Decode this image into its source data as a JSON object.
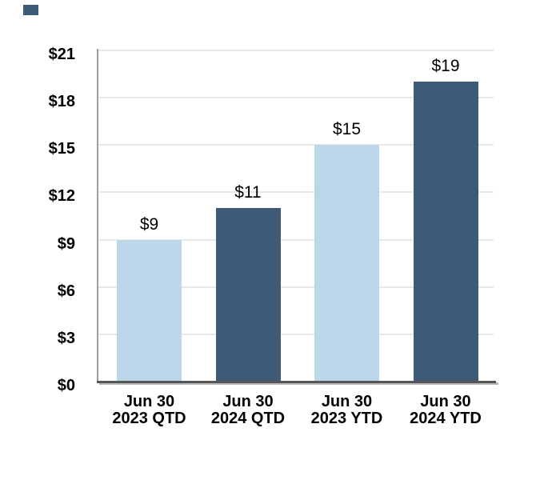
{
  "chart_data": {
    "type": "bar",
    "title": "",
    "categories": [
      "Jun 30 2023 QTD",
      "Jun 30 2024 QTD",
      "Jun 30 2023 YTD",
      "Jun 30 2024 YTD"
    ],
    "values": [
      9,
      11,
      15,
      19
    ],
    "bars": [
      {
        "category_line1": "Jun 30",
        "category_line2": "2023 QTD",
        "value": 9,
        "label": "$9",
        "color": "#bdd7ea"
      },
      {
        "category_line1": "Jun 30",
        "category_line2": "2024 QTD",
        "value": 11,
        "label": "$11",
        "color": "#3d5a76"
      },
      {
        "category_line1": "Jun 30",
        "category_line2": "2023 YTD",
        "value": 15,
        "label": "$15",
        "color": "#bdd7ea"
      },
      {
        "category_line1": "Jun 30",
        "category_line2": "2024 YTD",
        "value": 19,
        "label": "$19",
        "color": "#3d5a76"
      }
    ],
    "y_axis": {
      "tick_labels": [
        "$21",
        "$18",
        "$15",
        "$12",
        "$9",
        "$6",
        "$3",
        "$0"
      ],
      "tick_values": [
        21,
        18,
        15,
        12,
        9,
        6,
        3,
        0
      ],
      "min": 0,
      "max": 21
    },
    "grid": "horizontal",
    "legend_position": "none",
    "data_label_format": "$N"
  },
  "style": {
    "light_bar": "#bdd7ea",
    "dark_bar": "#3d5a76",
    "gridline": "#e9e9e9",
    "y_axis_line": "#9e9e9e",
    "x_axis_line": "#565656",
    "text": "#000000",
    "background": "#ffffff",
    "corner_marker": "#3d5a76"
  }
}
